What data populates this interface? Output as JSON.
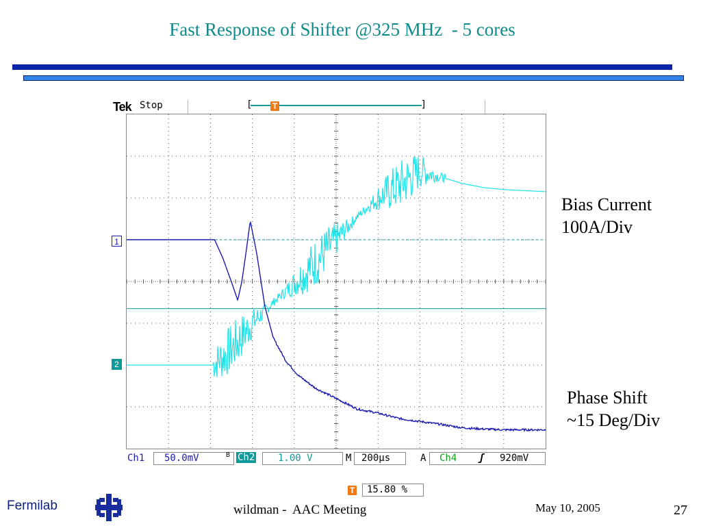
{
  "slide": {
    "title": "Fast Response of Shifter @325 MHz  - 5 cores",
    "label_bias_line1": "Bias Current",
    "label_bias_line2": "100A/Div",
    "label_phase_line1": "Phase Shift",
    "label_phase_line2": "~15 Deg/Div",
    "footer_org": "Fermilab",
    "footer_author": "wildman -  AAC Meeting",
    "footer_date": "May 10, 2005",
    "footer_page": "27"
  },
  "scope": {
    "brand": "Tek",
    "state": "Stop",
    "trigger_symbol": "T",
    "ch1_marker": "1",
    "ch2_marker": "2",
    "ch1_label": "Ch1",
    "ch1_scale": "50.0mV",
    "bw_symbol": "B",
    "ch2_label": "Ch2",
    "ch2_scale": "1.00 V",
    "timebase_label": "M",
    "timebase": "200µs",
    "trigger_label": "A",
    "trigger_source": "Ch4",
    "trigger_slope": "ʃ",
    "trigger_level": "920mV",
    "trigger_position": "15.80 %",
    "colors": {
      "ch1": "#1a1ab0",
      "ch2": "#1fe3e8",
      "ref": "#10999a",
      "trigger": "#f07b16",
      "grid": "#555555"
    }
  },
  "chart_data": {
    "type": "line",
    "title": "",
    "xlabel": "",
    "ylabel": "",
    "x_divisions": 10,
    "y_divisions": 8,
    "x_units": "div",
    "y_units": "div",
    "series": [
      {
        "name": "Bias Current",
        "x": [
          0,
          2.1,
          2.3,
          2.55,
          2.65,
          2.75,
          2.85,
          2.95,
          3.1,
          3.3,
          3.5,
          3.8,
          4.1,
          4.5,
          5,
          5.5,
          6,
          6.5,
          7,
          7.5,
          8,
          8.5,
          9,
          10
        ],
        "y": [
          5.0,
          5.0,
          4.55,
          3.85,
          3.55,
          4.0,
          4.7,
          5.45,
          4.7,
          3.4,
          2.65,
          2.1,
          1.75,
          1.45,
          1.2,
          0.95,
          0.85,
          0.72,
          0.65,
          0.58,
          0.5,
          0.47,
          0.45,
          0.45
        ]
      },
      {
        "name": "Phase Shift",
        "x": [
          0,
          2.05,
          2.3,
          2.6,
          3.0,
          3.5,
          4.0,
          4.5,
          5.0,
          5.5,
          6.0,
          6.5,
          7.0,
          7.5,
          8.0,
          8.5,
          9.0,
          10
        ],
        "y": [
          2.0,
          2.0,
          2.2,
          2.5,
          3.0,
          3.5,
          3.95,
          4.45,
          5.0,
          5.55,
          6.0,
          6.3,
          6.65,
          6.5,
          6.35,
          6.25,
          6.2,
          6.15
        ]
      }
    ],
    "xlim": [
      0,
      10
    ],
    "ylim": [
      0,
      8
    ],
    "grid": true
  }
}
